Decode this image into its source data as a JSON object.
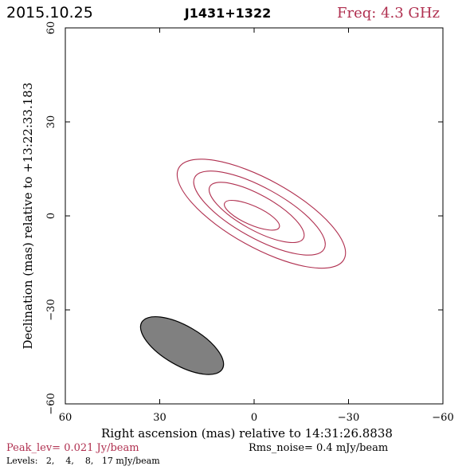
{
  "header": {
    "date": "2015.10.25",
    "source": "J1431+1322",
    "freq": "Freq: 4.3 GHz"
  },
  "footer": {
    "peak": "Peak_lev=  0.021 Jy/beam",
    "rms": "Rms_noise=   0.4 mJy/beam",
    "levels": "Levels:   2,    4,    8,   17 mJy/beam"
  },
  "colors": {
    "contour": "#b03050",
    "beam_fill": "#808080",
    "axis": "#000000",
    "title_accent": "#b03050"
  },
  "chart_data": {
    "type": "contour",
    "title": "J1431+1322",
    "xlabel": "Right ascension (mas) relative to 14:31:26.8838",
    "ylabel": "Declination (mas) relative to +13:22:33.183",
    "xlim": [
      60,
      -60
    ],
    "ylim": [
      -60,
      60
    ],
    "xticks": [
      60,
      30,
      0,
      -30,
      -60
    ],
    "yticks": [
      -60,
      -30,
      0,
      30,
      60
    ],
    "xtick_labels": [
      "60",
      "30",
      "0",
      "−30",
      "−60"
    ],
    "ytick_labels": [
      "−60",
      "−30",
      "0",
      "30",
      "60"
    ],
    "grid": false,
    "contour_levels_mJy": [
      2,
      4,
      8,
      17
    ],
    "contours": [
      {
        "level": 2,
        "cx": -2.3,
        "cy": 0.7,
        "a": 30,
        "b": 10.8,
        "pa_deg": -29
      },
      {
        "level": 4,
        "cx": -1.7,
        "cy": 0.9,
        "a": 23.5,
        "b": 8,
        "pa_deg": -29
      },
      {
        "level": 8,
        "cx": -0.8,
        "cy": 1.1,
        "a": 17,
        "b": 5.6,
        "pa_deg": -29
      },
      {
        "level": 17,
        "cx": 0.7,
        "cy": 0.2,
        "a": 9.5,
        "b": 3,
        "pa_deg": -24
      }
    ],
    "beam": {
      "cx": 22.9,
      "cy": -41.4,
      "a": 14.8,
      "b": 6.3,
      "pa_deg": -30
    },
    "peak_Jy_per_beam": 0.021,
    "rms_noise_mJy_per_beam": 0.4
  }
}
